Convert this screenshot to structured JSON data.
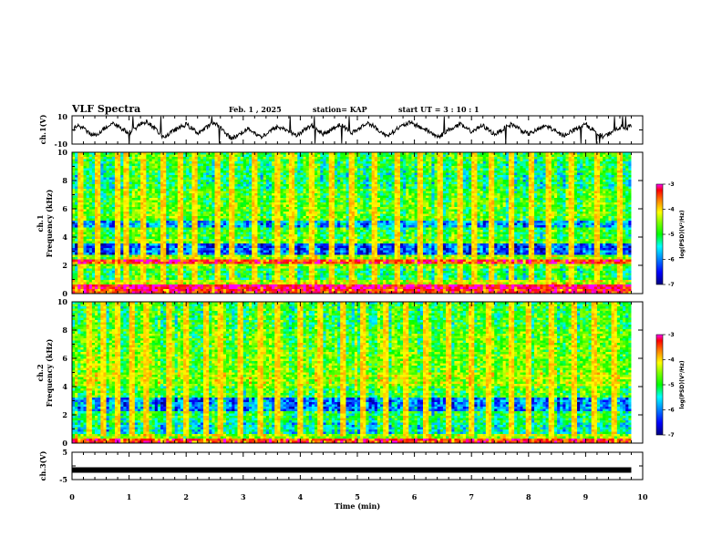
{
  "header": {
    "title": "VLF Spectra",
    "date": "Feb. 1 , 2025",
    "station": "station= KAP",
    "start_ut": "start UT =  3 : 10 : 1"
  },
  "colors": {
    "spectrogram_ramp": [
      "#000080",
      "#0000ff",
      "#0080ff",
      "#00ffff",
      "#00ff00",
      "#80ff00",
      "#ffff00",
      "#ff8000",
      "#ff0000",
      "#ff00ff"
    ],
    "trace": "#000000",
    "background": "#ffffff"
  },
  "chart_data": [
    {
      "type": "line",
      "name": "ch1_waveform",
      "ylabel": "ch.1(V)",
      "ylim": [
        -10,
        10
      ],
      "yticks": [
        "10",
        "-10"
      ],
      "x": [
        0,
        0.1,
        0.2,
        0.3,
        0.4,
        0.5,
        0.6,
        0.7,
        0.8,
        0.9,
        1.0,
        1.1,
        1.2,
        1.3,
        1.4,
        1.5,
        1.6,
        1.7,
        1.8,
        1.9,
        2.0,
        2.1,
        2.2,
        2.3,
        2.4,
        2.5,
        2.6,
        2.7,
        2.8,
        2.9,
        3.0,
        3.1,
        3.2,
        3.3,
        3.4,
        3.5,
        3.6,
        3.7,
        3.8,
        3.9,
        4.0,
        4.1,
        4.2,
        4.3,
        4.4,
        4.5,
        4.6,
        4.7,
        4.8,
        4.9,
        5.0,
        5.1,
        5.2,
        5.3,
        5.4,
        5.5,
        5.6,
        5.7,
        5.8,
        5.9,
        6.0,
        6.1,
        6.2,
        6.3,
        6.4,
        6.5,
        6.6,
        6.7,
        6.8,
        6.9,
        7.0,
        7.1,
        7.2,
        7.3,
        7.4,
        7.5,
        7.6,
        7.7,
        7.8,
        7.9,
        8.0,
        8.1,
        8.2,
        8.3,
        8.4,
        8.5,
        8.6,
        8.7,
        8.8,
        8.9,
        9.0,
        9.1,
        9.2,
        9.3,
        9.4,
        9.5,
        9.6,
        9.7,
        9.8
      ],
      "y": [
        0,
        3,
        1,
        -2,
        -4,
        -1,
        2,
        5,
        3,
        0,
        -2,
        1,
        4,
        6,
        3,
        -1,
        -5,
        -3,
        0,
        2,
        4,
        1,
        -2,
        0,
        3,
        5,
        2,
        -3,
        -6,
        -4,
        -1,
        1,
        -2,
        -5,
        -3,
        0,
        2,
        1,
        -1,
        -4,
        -2,
        1,
        3,
        0,
        -3,
        -1,
        2,
        4,
        1,
        -2,
        0,
        3,
        5,
        2,
        -1,
        -4,
        -2,
        1,
        3,
        5,
        4,
        2,
        0,
        -2,
        -5,
        -3,
        0,
        2,
        4,
        1,
        -1,
        1,
        3,
        0,
        -3,
        -1,
        2,
        4,
        2,
        -1,
        -3,
        -1,
        1,
        3,
        1,
        -2,
        -4,
        -2,
        0,
        2,
        4,
        1,
        -2,
        -5,
        -3,
        0,
        2,
        1,
        3
      ]
    },
    {
      "type": "heatmap",
      "name": "ch1_spectrogram",
      "ylabel": "ch.1\nFrequency (kHz)",
      "xlim": [
        0,
        10
      ],
      "ylim": [
        0,
        10
      ],
      "yticks": [
        "0",
        "2",
        "4",
        "6",
        "8",
        "10"
      ],
      "colorbar": {
        "label": "log(PSD)(V²/Hz)",
        "ticks": [
          "-3",
          "-4",
          "-5",
          "-6",
          "-7"
        ],
        "range": [
          -7,
          -3
        ]
      },
      "data_extent_min": 9.8,
      "freq_band_levels": [
        {
          "from": 0.0,
          "to": 0.3,
          "level": -3.6
        },
        {
          "from": 0.3,
          "to": 0.6,
          "level": -3.3
        },
        {
          "from": 0.6,
          "to": 1.0,
          "level": -4.6
        },
        {
          "from": 1.0,
          "to": 1.8,
          "level": -5.3
        },
        {
          "from": 1.8,
          "to": 2.1,
          "level": -4.9
        },
        {
          "from": 2.1,
          "to": 2.4,
          "level": -3.6
        },
        {
          "from": 2.4,
          "to": 2.8,
          "level": -4.8
        },
        {
          "from": 2.8,
          "to": 3.5,
          "level": -6.3
        },
        {
          "from": 3.5,
          "to": 3.9,
          "level": -4.9
        },
        {
          "from": 3.9,
          "to": 4.6,
          "level": -5.2
        },
        {
          "from": 4.6,
          "to": 5.2,
          "level": -6.0
        },
        {
          "from": 5.2,
          "to": 6.5,
          "level": -5.0
        },
        {
          "from": 6.5,
          "to": 7.5,
          "level": -5.1
        },
        {
          "from": 7.5,
          "to": 8.5,
          "level": -5.4
        },
        {
          "from": 8.5,
          "to": 9.5,
          "level": -5.3
        },
        {
          "from": 9.5,
          "to": 10.0,
          "level": -5.1
        }
      ],
      "burst_times_min": [
        0.15,
        0.45,
        0.8,
        0.95,
        1.25,
        1.6,
        1.9,
        2.15,
        2.55,
        2.8,
        3.2,
        3.6,
        3.85,
        4.2,
        4.55,
        4.9,
        5.3,
        5.7,
        6.1,
        6.45,
        6.8,
        7.05,
        7.35,
        7.7,
        8.05,
        8.35,
        8.75,
        9.2,
        9.6
      ]
    },
    {
      "type": "heatmap",
      "name": "ch2_spectrogram",
      "ylabel": "ch.2\nFrequency (kHz)",
      "xlim": [
        0,
        10
      ],
      "ylim": [
        0,
        10
      ],
      "yticks": [
        "0",
        "2",
        "4",
        "6",
        "8",
        "10"
      ],
      "colorbar": {
        "label": "log(PSD)(V²/Hz)",
        "ticks": [
          "-3",
          "-4",
          "-5",
          "-6",
          "-7"
        ],
        "range": [
          -7,
          -3
        ]
      },
      "data_extent_min": 9.8,
      "freq_band_levels": [
        {
          "from": 0.0,
          "to": 0.3,
          "level": -3.6
        },
        {
          "from": 0.3,
          "to": 0.7,
          "level": -4.7
        },
        {
          "from": 0.7,
          "to": 1.5,
          "level": -5.6
        },
        {
          "from": 1.5,
          "to": 2.2,
          "level": -5.3
        },
        {
          "from": 2.2,
          "to": 3.3,
          "level": -6.1
        },
        {
          "from": 3.3,
          "to": 4.0,
          "level": -5.1
        },
        {
          "from": 4.0,
          "to": 5.0,
          "level": -4.7
        },
        {
          "from": 5.0,
          "to": 6.5,
          "level": -4.9
        },
        {
          "from": 6.5,
          "to": 8.0,
          "level": -5.0
        },
        {
          "from": 8.0,
          "to": 10.0,
          "level": -5.2
        }
      ],
      "burst_times_min": [
        0.3,
        0.55,
        0.8,
        1.05,
        1.3,
        1.7,
        2.0,
        2.35,
        2.6,
        2.95,
        3.3,
        3.6,
        4.0,
        4.35,
        4.75,
        5.1,
        5.5,
        5.85,
        6.2,
        6.6,
        7.0,
        7.3,
        7.7,
        8.0,
        8.4,
        8.8,
        9.15,
        9.5
      ]
    },
    {
      "type": "line",
      "name": "ch3_waveform",
      "ylabel": "ch.3(V)",
      "ylim": [
        -5,
        5
      ],
      "yticks": [
        "5",
        "-5"
      ],
      "x": [
        0,
        9.8
      ],
      "y": [
        -1.5,
        -1.5
      ]
    }
  ],
  "x_axis": {
    "label": "Time  (min)",
    "range": [
      0,
      10
    ],
    "ticks": [
      "0",
      "1",
      "2",
      "3",
      "4",
      "5",
      "6",
      "7",
      "8",
      "9",
      "10"
    ]
  }
}
